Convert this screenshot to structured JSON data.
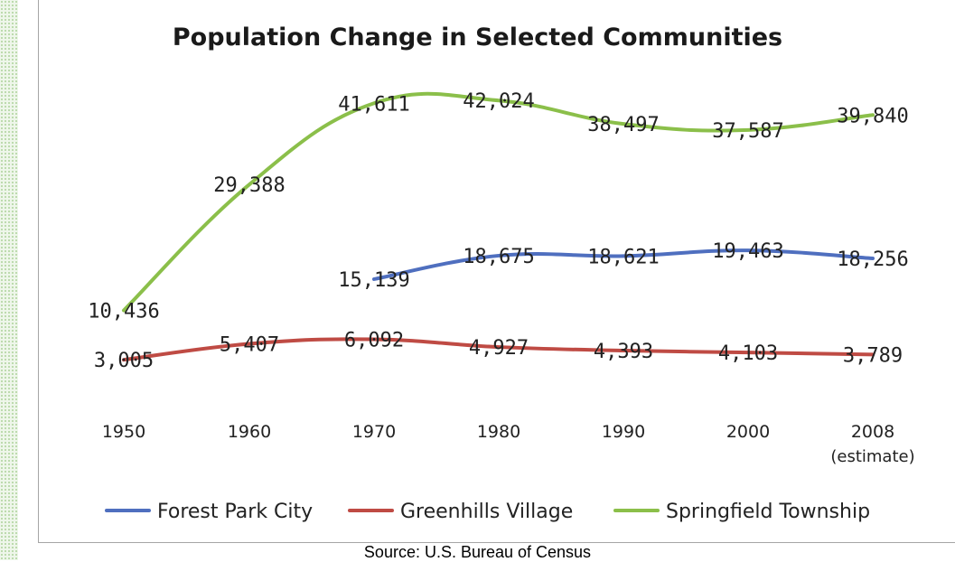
{
  "chart_data": {
    "type": "line",
    "title": "Population Change in Selected Communities",
    "categories": [
      "1950",
      "1960",
      "1970",
      "1980",
      "1990",
      "2000",
      "2008"
    ],
    "category_notes": [
      "",
      "",
      "",
      "",
      "",
      "",
      "(estimate)"
    ],
    "xlabel": "",
    "ylabel": "",
    "grid": false,
    "legend_position": "bottom",
    "series": [
      {
        "name": "Forest Park City",
        "color": "#4f6fbf",
        "values": [
          null,
          null,
          15139,
          18675,
          18621,
          19463,
          18256
        ],
        "labels": [
          "",
          "",
          "15,139",
          "18,675",
          "18,621",
          "19,463",
          "18,256"
        ]
      },
      {
        "name": "Greenhills Village",
        "color": "#bf4b44",
        "values": [
          3005,
          5407,
          6092,
          4927,
          4393,
          4103,
          3789
        ],
        "labels": [
          "3,005",
          "5,407",
          "6,092",
          "4,927",
          "4,393",
          "4,103",
          "3,789"
        ]
      },
      {
        "name": "Springfield Township",
        "color": "#8bbf4a",
        "values": [
          10436,
          29388,
          41611,
          42024,
          38497,
          37587,
          39840
        ],
        "labels": [
          "10,436",
          "29,388",
          "41,611",
          "42,024",
          "38,497",
          "37,587",
          "39,840"
        ]
      }
    ]
  },
  "source": "Source: U.S. Bureau of Census"
}
